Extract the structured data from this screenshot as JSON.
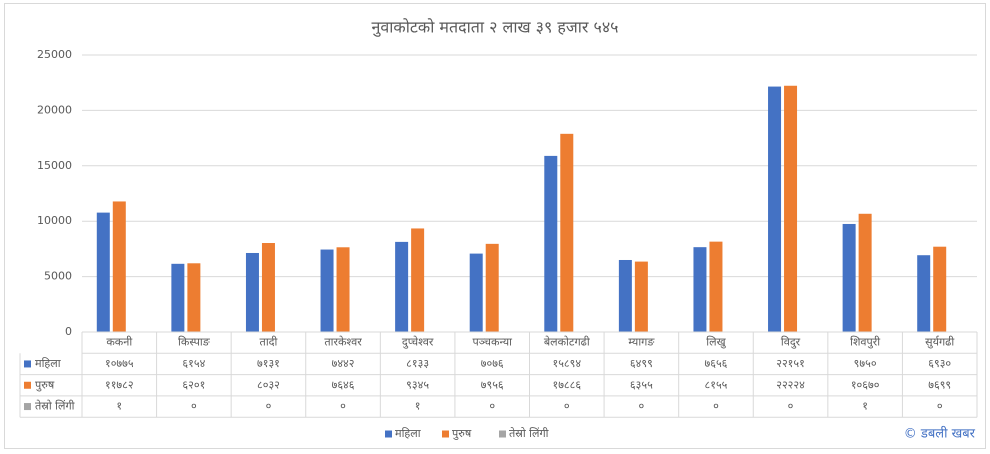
{
  "chart_data": {
    "type": "bar",
    "title": "नुवाकोटको मतदाता २ लाख ३९ हजार ५४५",
    "categories": [
      "ककनी",
      "किस्पाङ",
      "तादी",
      "तारकेश्वर",
      "दुप्चेश्वर",
      "पञ्चकन्या",
      "बेलकोटगढी",
      "म्यागङ",
      "लिखु",
      "विदुर",
      "शिवपुरी",
      "सुर्यगढी"
    ],
    "series": [
      {
        "name": "महिला",
        "color": "#4472c4",
        "values": [
          10775,
          6154,
          7131,
          7442,
          8133,
          7076,
          15894,
          6499,
          7656,
          22151,
          9750,
          6930
        ],
        "value_labels": [
          "१०७७५",
          "६१५४",
          "७१३१",
          "७४४२",
          "८१३३",
          "७०७६",
          "१५८९४",
          "६४९९",
          "७६५६",
          "२२१५१",
          "९७५०",
          "६९३०"
        ]
      },
      {
        "name": "पुरुष",
        "color": "#ed7d31",
        "values": [
          11782,
          6201,
          8032,
          7646,
          9345,
          7956,
          17886,
          6355,
          8155,
          22224,
          10670,
          7699
        ],
        "value_labels": [
          "११७८२",
          "६२०१",
          "८०३२",
          "७६४६",
          "९३४५",
          "७९५६",
          "१७८८६",
          "६३५५",
          "८१५५",
          "२२२२४",
          "१०६७०",
          "७६९९"
        ]
      },
      {
        "name": "तेस्रो लिंगी",
        "color": "#a5a5a5",
        "values": [
          1,
          0,
          0,
          0,
          1,
          0,
          0,
          0,
          0,
          0,
          1,
          0
        ],
        "value_labels": [
          "१",
          "०",
          "०",
          "०",
          "१",
          "०",
          "०",
          "०",
          "०",
          "०",
          "१",
          "०"
        ]
      }
    ],
    "ylim": [
      0,
      25000
    ],
    "yticks": [
      0,
      5000,
      10000,
      15000,
      20000,
      25000
    ],
    "grid": true,
    "legend": "bottom",
    "annotation": "© डबली खबर"
  }
}
